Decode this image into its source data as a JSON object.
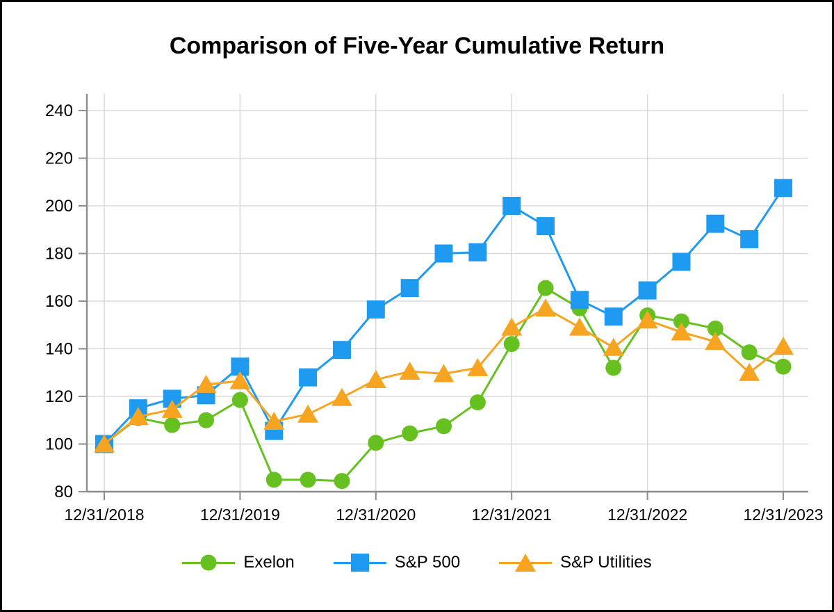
{
  "chart_data": {
    "type": "line",
    "title": "Comparison of Five-Year Cumulative Return",
    "xlabel": "",
    "ylabel": "",
    "x_dates": [
      "12/31/2018",
      "3/31/2019",
      "6/30/2019",
      "9/30/2019",
      "12/31/2019",
      "3/31/2020",
      "6/30/2020",
      "9/30/2020",
      "12/31/2020",
      "3/31/2021",
      "6/30/2021",
      "9/30/2021",
      "12/31/2021",
      "3/31/2022",
      "6/30/2022",
      "9/30/2022",
      "12/31/2022",
      "3/31/2023",
      "6/30/2023",
      "9/30/2023",
      "12/31/2023"
    ],
    "x_tick_labels": [
      "12/31/2018",
      "12/31/2019",
      "12/31/2020",
      "12/31/2021",
      "12/31/2022",
      "12/31/2023"
    ],
    "x_tick_indices": [
      0,
      4,
      8,
      12,
      16,
      20
    ],
    "yticks": [
      80,
      100,
      120,
      140,
      160,
      180,
      200,
      220,
      240
    ],
    "ylim": [
      80,
      240
    ],
    "grid": true,
    "legend_position": "bottom",
    "series": [
      {
        "name": "Exelon",
        "color": "#66C120",
        "marker": "circle",
        "values": [
          100,
          111,
          108,
          110,
          118.5,
          85,
          85,
          84.5,
          100.5,
          104.5,
          107.5,
          117.5,
          142,
          165.5,
          157,
          132,
          154,
          151.5,
          148.5,
          138.5,
          132.5
        ]
      },
      {
        "name": "S&P 500",
        "color": "#1E9BF0",
        "marker": "square",
        "values": [
          100,
          115,
          119,
          120.5,
          132.5,
          105.5,
          128,
          139.5,
          156.5,
          165.5,
          180,
          180.5,
          200,
          191.5,
          160.5,
          153.5,
          164.5,
          176.5,
          192.5,
          186,
          207.5
        ]
      },
      {
        "name": "S&P Utilities",
        "color": "#F7A521",
        "marker": "triangle",
        "values": [
          100,
          111.5,
          114.5,
          125,
          126.5,
          109.5,
          112.5,
          119.5,
          127,
          130.5,
          129.5,
          132,
          149,
          157,
          149,
          140.5,
          152,
          147,
          143,
          130,
          141
        ]
      }
    ],
    "colors": {
      "grid": "#DADADA",
      "axis": "#8C8C8C",
      "text": "#000000",
      "background": "#FFFFFF",
      "frame_border": "#000000"
    }
  }
}
